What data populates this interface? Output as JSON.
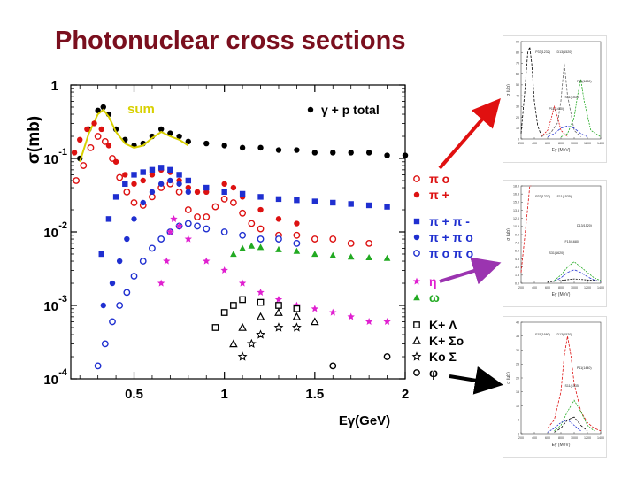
{
  "slide_title": "Photonuclear cross sections",
  "colors": {
    "title": "#7a0f1e",
    "black": "#000000",
    "red": "#dd1111",
    "blue": "#1f2fd0",
    "magenta": "#e020d0",
    "green": "#22aa22",
    "yellow": "#d8d000"
  },
  "chart_data": [
    {
      "type": "scatter",
      "title": "",
      "xlabel": "Eγ(GeV)",
      "ylabel": "σ(mb)",
      "yscale": "log",
      "xlim": [
        0.15,
        2.0
      ],
      "ylim": [
        0.0001,
        1
      ],
      "x_ticks": [
        "0.5",
        "1",
        "1.5",
        "2"
      ],
      "y_ticks": [
        {
          "base": "1",
          "exp": ""
        },
        {
          "base": "10",
          "exp": "-1"
        },
        {
          "base": "10",
          "exp": "-2"
        },
        {
          "base": "10",
          "exp": "-3"
        },
        {
          "base": "10",
          "exp": "-4"
        }
      ],
      "annotations": [
        {
          "text": "sum",
          "color": "#d8d000"
        }
      ],
      "legend": [
        {
          "label": "γ + p  total",
          "marker": "circle-filled",
          "color": "#000000"
        },
        {
          "label": "π o",
          "marker": "circle-open",
          "color": "#dd1111"
        },
        {
          "label": "π +",
          "marker": "circle-filled",
          "color": "#dd1111"
        },
        {
          "label": "π + π -",
          "marker": "square-filled",
          "color": "#1f2fd0"
        },
        {
          "label": "π + π o",
          "marker": "circle-filled",
          "color": "#1f2fd0"
        },
        {
          "label": "π o π o",
          "marker": "circle-open",
          "color": "#1f2fd0"
        },
        {
          "label": "η",
          "marker": "star",
          "color": "#e020d0"
        },
        {
          "label": "ω",
          "marker": "triangle-filled",
          "color": "#22aa22"
        },
        {
          "label": "K+ Λ",
          "marker": "square-open",
          "color": "#000000"
        },
        {
          "label": "K+ Σo",
          "marker": "triangle-open",
          "color": "#000000"
        },
        {
          "label": "Ko Σ",
          "marker": "star-open",
          "color": "#000000"
        },
        {
          "label": "φ",
          "marker": "circle-open",
          "color": "#000000"
        }
      ],
      "series": [
        {
          "name": "γ + p  total",
          "marker": "circle-filled",
          "color": "#000000",
          "x": [
            0.2,
            0.25,
            0.3,
            0.33,
            0.36,
            0.4,
            0.45,
            0.5,
            0.55,
            0.6,
            0.65,
            0.7,
            0.75,
            0.8,
            0.9,
            1.0,
            1.1,
            1.2,
            1.3,
            1.4,
            1.5,
            1.6,
            1.7,
            1.8,
            1.9,
            2.0
          ],
          "y": [
            0.1,
            0.25,
            0.45,
            0.5,
            0.4,
            0.25,
            0.18,
            0.15,
            0.16,
            0.2,
            0.25,
            0.22,
            0.2,
            0.17,
            0.16,
            0.15,
            0.14,
            0.14,
            0.13,
            0.13,
            0.12,
            0.12,
            0.12,
            0.12,
            0.11,
            0.11
          ]
        },
        {
          "name": "sum",
          "marker": "line",
          "color": "#d8d000",
          "x": [
            0.2,
            0.25,
            0.3,
            0.33,
            0.36,
            0.4,
            0.45,
            0.5,
            0.55,
            0.6,
            0.65,
            0.7,
            0.75,
            0.8
          ],
          "y": [
            0.09,
            0.22,
            0.4,
            0.46,
            0.37,
            0.23,
            0.16,
            0.14,
            0.15,
            0.19,
            0.23,
            0.2,
            0.18,
            0.15
          ]
        },
        {
          "name": "π o",
          "marker": "circle-open",
          "color": "#dd1111",
          "x": [
            0.18,
            0.22,
            0.26,
            0.3,
            0.34,
            0.38,
            0.42,
            0.46,
            0.5,
            0.55,
            0.6,
            0.65,
            0.7,
            0.75,
            0.8,
            0.85,
            0.9,
            0.95,
            1.0,
            1.05,
            1.1,
            1.15,
            1.2,
            1.3,
            1.4,
            1.5,
            1.6,
            1.7,
            1.8
          ],
          "y": [
            0.05,
            0.08,
            0.14,
            0.2,
            0.17,
            0.1,
            0.055,
            0.035,
            0.025,
            0.023,
            0.03,
            0.04,
            0.045,
            0.035,
            0.02,
            0.016,
            0.016,
            0.022,
            0.028,
            0.025,
            0.018,
            0.013,
            0.011,
            0.009,
            0.009,
            0.008,
            0.008,
            0.007,
            0.007
          ]
        },
        {
          "name": "π +",
          "marker": "circle-filled",
          "color": "#dd1111",
          "x": [
            0.17,
            0.2,
            0.24,
            0.28,
            0.32,
            0.36,
            0.4,
            0.45,
            0.5,
            0.55,
            0.6,
            0.65,
            0.7,
            0.75,
            0.8,
            0.85,
            0.9,
            1.0,
            1.05,
            1.1,
            1.2,
            1.3,
            1.4
          ],
          "y": [
            0.12,
            0.18,
            0.25,
            0.3,
            0.25,
            0.15,
            0.09,
            0.06,
            0.045,
            0.05,
            0.06,
            0.07,
            0.065,
            0.05,
            0.04,
            0.035,
            0.035,
            0.045,
            0.04,
            0.03,
            0.02,
            0.015,
            0.013
          ]
        },
        {
          "name": "π + π -",
          "marker": "square-filled",
          "color": "#1f2fd0",
          "x": [
            0.32,
            0.36,
            0.4,
            0.45,
            0.5,
            0.55,
            0.6,
            0.65,
            0.7,
            0.75,
            0.8,
            0.9,
            1.0,
            1.1,
            1.2,
            1.3,
            1.4,
            1.5,
            1.6,
            1.7,
            1.8,
            1.9
          ],
          "y": [
            0.005,
            0.015,
            0.03,
            0.045,
            0.06,
            0.065,
            0.07,
            0.075,
            0.07,
            0.06,
            0.05,
            0.04,
            0.035,
            0.033,
            0.03,
            0.028,
            0.027,
            0.026,
            0.025,
            0.024,
            0.023,
            0.022
          ]
        },
        {
          "name": "π + π o",
          "marker": "circle-filled",
          "color": "#1f2fd0",
          "x": [
            0.33,
            0.38,
            0.42,
            0.46,
            0.5,
            0.55,
            0.6,
            0.65,
            0.7,
            0.75,
            0.8
          ],
          "y": [
            0.001,
            0.002,
            0.004,
            0.008,
            0.015,
            0.025,
            0.035,
            0.045,
            0.05,
            0.045,
            0.035
          ]
        },
        {
          "name": "π o π o",
          "marker": "circle-open",
          "color": "#1f2fd0",
          "x": [
            0.3,
            0.34,
            0.38,
            0.42,
            0.46,
            0.5,
            0.55,
            0.6,
            0.65,
            0.7,
            0.75,
            0.8,
            0.85,
            0.9,
            1.0,
            1.1,
            1.2,
            1.3,
            1.4
          ],
          "y": [
            0.00015,
            0.0003,
            0.0006,
            0.001,
            0.0015,
            0.0025,
            0.004,
            0.006,
            0.008,
            0.01,
            0.012,
            0.013,
            0.012,
            0.011,
            0.01,
            0.009,
            0.008,
            0.008,
            0.007
          ]
        },
        {
          "name": "η",
          "marker": "star",
          "color": "#e020d0",
          "x": [
            0.65,
            0.68,
            0.7,
            0.72,
            0.75,
            0.8,
            0.9,
            1.0,
            1.1,
            1.2,
            1.3,
            1.4,
            1.5,
            1.6,
            1.7,
            1.8,
            1.9
          ],
          "y": [
            0.002,
            0.004,
            0.01,
            0.015,
            0.012,
            0.008,
            0.004,
            0.003,
            0.002,
            0.0015,
            0.0012,
            0.001,
            0.0009,
            0.0008,
            0.0007,
            0.0006,
            0.0006
          ]
        },
        {
          "name": "ω",
          "marker": "triangle-filled",
          "color": "#22aa22",
          "x": [
            1.05,
            1.1,
            1.15,
            1.2,
            1.3,
            1.4,
            1.5,
            1.6,
            1.7,
            1.8,
            1.9
          ],
          "y": [
            0.005,
            0.006,
            0.0065,
            0.0062,
            0.0058,
            0.0055,
            0.005,
            0.0048,
            0.0046,
            0.0045,
            0.0044
          ]
        },
        {
          "name": "K+ Λ",
          "marker": "square-open",
          "color": "#000000",
          "x": [
            0.95,
            1.0,
            1.05,
            1.1,
            1.2,
            1.3,
            1.4
          ],
          "y": [
            0.0005,
            0.0008,
            0.001,
            0.0012,
            0.0011,
            0.001,
            0.0009
          ]
        },
        {
          "name": "K+ Σo",
          "marker": "triangle-open",
          "color": "#000000",
          "x": [
            1.05,
            1.1,
            1.2,
            1.3,
            1.4,
            1.5
          ],
          "y": [
            0.0003,
            0.0005,
            0.0007,
            0.0008,
            0.0007,
            0.0006
          ]
        },
        {
          "name": "Ko Σ",
          "marker": "star-open",
          "color": "#000000",
          "x": [
            1.1,
            1.15,
            1.2,
            1.3,
            1.4
          ],
          "y": [
            0.0002,
            0.0003,
            0.0004,
            0.0005,
            0.0005
          ]
        },
        {
          "name": "φ",
          "marker": "circle-open",
          "color": "#000000",
          "x": [
            1.6,
            1.9
          ],
          "y": [
            0.00015,
            0.0002
          ]
        }
      ]
    },
    {
      "type": "line",
      "title": "",
      "xlabel": "Eγ (MeV)",
      "ylabel": "σ (μb)",
      "xlim": [
        200,
        1400
      ],
      "ylim": [
        0,
        90
      ],
      "x_ticks": [
        "200",
        "400",
        "600",
        "800",
        "1000",
        "1200",
        "1400"
      ],
      "y_ticks": [
        "0",
        "10",
        "20",
        "30",
        "40",
        "50",
        "60",
        "70",
        "80",
        "90"
      ],
      "annotations": [
        {
          "text": "P33(1232)"
        },
        {
          "text": "D13(1520)"
        },
        {
          "text": "F15(1680)"
        },
        {
          "text": "S11(1535)"
        },
        {
          "text": "P11(1440)"
        }
      ],
      "series": [
        {
          "color": "#000000",
          "x": [
            200,
            250,
            300,
            330,
            360,
            400,
            450,
            500
          ],
          "y": [
            5,
            40,
            80,
            85,
            70,
            35,
            12,
            4
          ]
        },
        {
          "color": "#dd1111",
          "x": [
            500,
            600,
            650,
            700,
            750,
            800,
            900
          ],
          "y": [
            2,
            8,
            18,
            30,
            20,
            8,
            2
          ]
        },
        {
          "color": "#666666",
          "x": [
            500,
            650,
            750,
            800,
            850,
            900,
            1000,
            1100
          ],
          "y": [
            2,
            6,
            15,
            35,
            70,
            40,
            8,
            2
          ]
        },
        {
          "color": "#22aa22",
          "x": [
            800,
            900,
            1000,
            1050,
            1100,
            1150,
            1250,
            1400
          ],
          "y": [
            2,
            5,
            20,
            40,
            55,
            35,
            8,
            2
          ]
        },
        {
          "color": "#1f2fd0",
          "x": [
            600,
            700,
            800,
            900,
            1000,
            1100,
            1200
          ],
          "y": [
            2,
            5,
            10,
            12,
            10,
            5,
            2
          ]
        }
      ]
    },
    {
      "type": "line",
      "title": "",
      "xlabel": "Eγ (MeV)",
      "ylabel": "σ (μb)",
      "xlim": [
        200,
        1400
      ],
      "ylim": [
        0,
        18
      ],
      "x_ticks": [
        "200",
        "400",
        "600",
        "800",
        "1000",
        "1200",
        "1400"
      ],
      "y_ticks": [
        "0.0",
        "1.5",
        "3.0",
        "4.5",
        "6.0",
        "7.5",
        "9.0",
        "10.5",
        "12.0",
        "13.5",
        "15.0",
        "16.5",
        "18.0"
      ],
      "annotations": [
        {
          "text": "P33(1232)"
        },
        {
          "text": "S11(1535)"
        },
        {
          "text": "D13(1520)"
        },
        {
          "text": "F15(1680)"
        },
        {
          "text": "S31(1620)"
        }
      ],
      "series": [
        {
          "color": "#dd1111",
          "x": [
            200,
            250,
            300,
            330,
            350
          ],
          "y": [
            2,
            8,
            14,
            18,
            18
          ]
        },
        {
          "color": "#22aa22",
          "x": [
            700,
            800,
            900,
            1000,
            1100,
            1200,
            1300,
            1400
          ],
          "y": [
            0.5,
            1.5,
            3,
            4,
            3,
            2,
            1,
            0.5
          ]
        },
        {
          "color": "#1f2fd0",
          "x": [
            700,
            800,
            900,
            1000,
            1100,
            1200,
            1300,
            1400
          ],
          "y": [
            0.4,
            1,
            2,
            2.5,
            2,
            1.2,
            0.6,
            0.3
          ]
        },
        {
          "color": "#000000",
          "x": [
            600,
            800,
            1000,
            1200,
            1400
          ],
          "y": [
            0.2,
            0.5,
            0.8,
            0.6,
            0.4
          ]
        }
      ]
    },
    {
      "type": "line",
      "title": "",
      "xlabel": "Eγ (MeV)",
      "ylabel": "σ (μb)",
      "xlim": [
        200,
        1400
      ],
      "ylim": [
        0,
        40
      ],
      "x_ticks": [
        "200",
        "400",
        "600",
        "800",
        "1000",
        "1200",
        "1400"
      ],
      "y_ticks": [
        "0",
        "5",
        "10",
        "15",
        "20",
        "25",
        "30",
        "35",
        "40"
      ],
      "annotations": [
        {
          "text": "F15(1680)"
        },
        {
          "text": "D13(1520)"
        },
        {
          "text": "P11(1440)"
        },
        {
          "text": "S11(1535)"
        }
      ],
      "series": [
        {
          "color": "#dd1111",
          "x": [
            600,
            700,
            800,
            850,
            900,
            950,
            1000,
            1100,
            1200,
            1300,
            1400
          ],
          "y": [
            2,
            5,
            15,
            28,
            35,
            28,
            18,
            8,
            4,
            2,
            1
          ]
        },
        {
          "color": "#22aa22",
          "x": [
            700,
            800,
            900,
            1000,
            1100,
            1200,
            1300
          ],
          "y": [
            1,
            3,
            8,
            12,
            8,
            3,
            1
          ]
        },
        {
          "color": "#000000",
          "x": [
            700,
            800,
            900,
            1000,
            1100,
            1200
          ],
          "y": [
            0.5,
            2,
            5,
            6,
            3,
            1
          ]
        },
        {
          "color": "#1f2fd0",
          "x": [
            600,
            700,
            800,
            900,
            1000,
            1100
          ],
          "y": [
            0.5,
            2,
            4,
            5,
            3,
            1
          ]
        }
      ]
    }
  ]
}
